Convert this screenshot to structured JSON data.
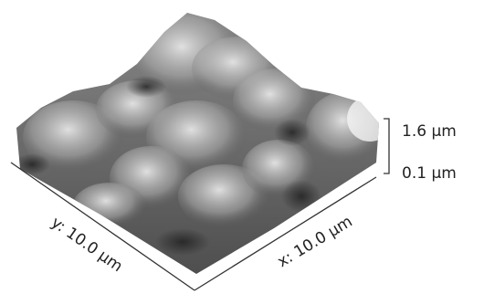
{
  "scale_labels": {
    "top": "1.6 µm",
    "bottom": "0.1 µm"
  },
  "axis_labels": {
    "y": "y: 10.0 µm",
    "x": "x: 10.0 µm"
  }
}
